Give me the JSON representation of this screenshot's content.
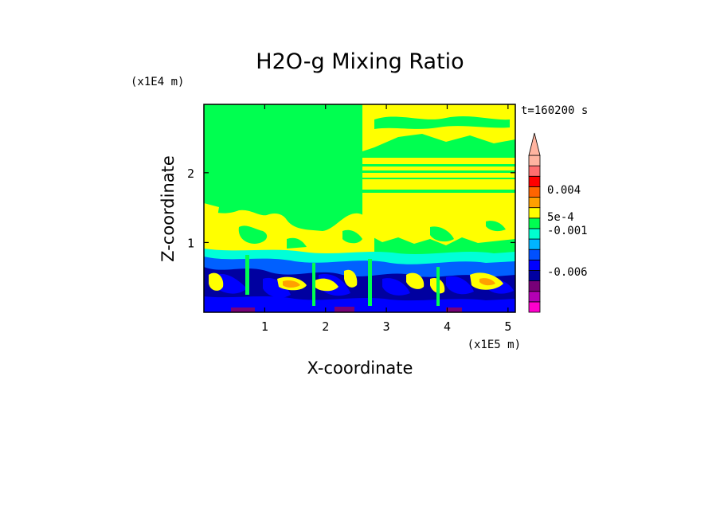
{
  "chart_data": {
    "type": "heatmap",
    "title": "H2O-g Mixing Ratio",
    "xlabel": "X-coordinate",
    "ylabel": "Z-coordinate",
    "x_scale_label": "(x1E5 m)",
    "y_scale_label": "(x1E4 m)",
    "time_label": "t=160200 s",
    "xlim": [
      0,
      5.12
    ],
    "ylim": [
      0,
      2.98
    ],
    "x_ticks": [
      "1",
      "2",
      "3",
      "4",
      "5"
    ],
    "y_ticks": [
      "1",
      "2"
    ],
    "colorbar": {
      "levels": [
        {
          "color": "#ff00cc"
        },
        {
          "color": "#b400b4"
        },
        {
          "color": "#780078"
        },
        {
          "color": "#0000a0"
        },
        {
          "color": "#0000ff"
        },
        {
          "color": "#0050ff"
        },
        {
          "color": "#00b4ff"
        },
        {
          "color": "#00ffd0"
        },
        {
          "color": "#00ff50"
        },
        {
          "color": "#ffff00"
        },
        {
          "color": "#ffa000"
        },
        {
          "color": "#ff6400"
        },
        {
          "color": "#ff0000"
        },
        {
          "color": "#ff6e6e"
        },
        {
          "color": "#ffb4a0"
        }
      ],
      "labels": [
        "0.004",
        "5e-4",
        "-0.001",
        "-0.006"
      ],
      "extend": "max"
    },
    "palette": {
      "magenta": "#ff00cc",
      "purple": "#8000a0",
      "navy": "#0000a0",
      "blue": "#0000ff",
      "lightblue": "#0060ff",
      "cyan": "#00ffd8",
      "green": "#00ff50",
      "yellow": "#ffff00",
      "orange": "#ffa000"
    }
  }
}
